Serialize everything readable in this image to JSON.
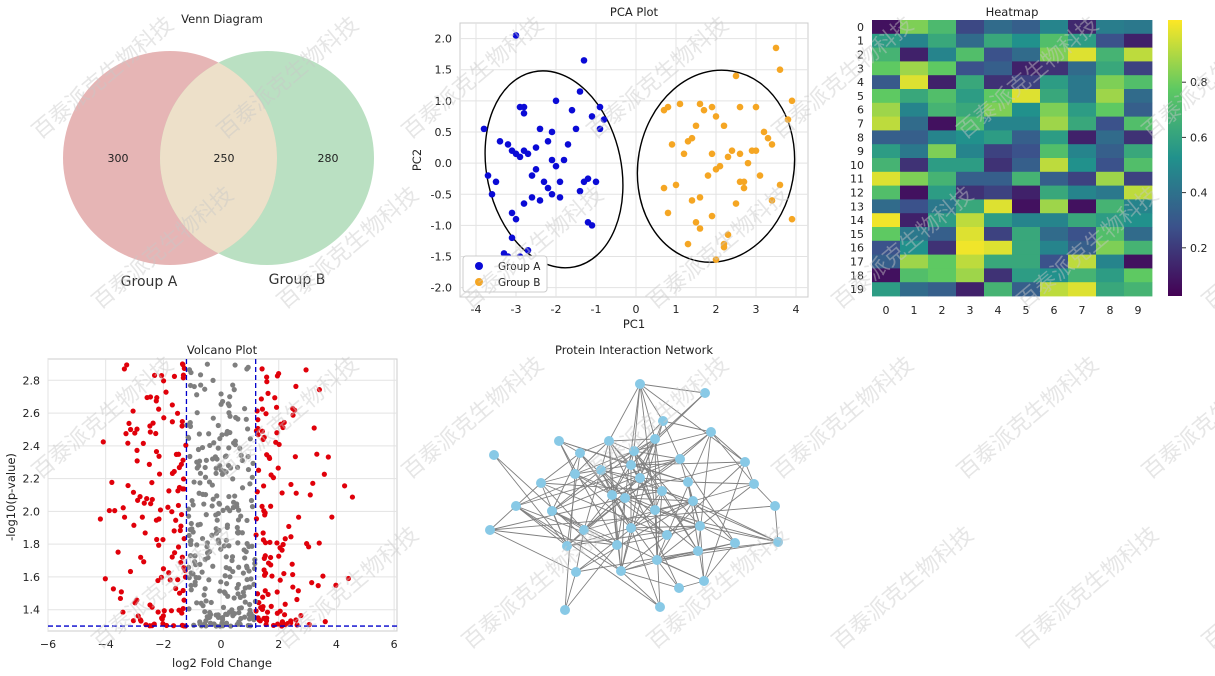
{
  "chart_data": [
    {
      "type": "venn",
      "title": "Venn Diagram",
      "sets": [
        {
          "name": "Group A",
          "only": "300",
          "color": "#e0a3a3"
        },
        {
          "name": "Group B",
          "only": "280",
          "color": "#a9d8b3"
        }
      ],
      "intersection": "250",
      "overlap_color": "#ede0c9"
    },
    {
      "type": "scatter",
      "title": "PCA Plot",
      "xlabel": "PC1",
      "ylabel": "PC2",
      "xlim": [
        -4.4,
        4.3
      ],
      "ylim": [
        -2.15,
        2.25
      ],
      "xticks": [
        "-4",
        "-3",
        "-2",
        "-1",
        "0",
        "1",
        "2",
        "3",
        "4"
      ],
      "yticks": [
        "-2.0",
        "-1.5",
        "-1.0",
        "-0.5",
        "0.0",
        "0.5",
        "1.0",
        "1.5",
        "2.0"
      ],
      "legend_position": "lower-left",
      "grid": true,
      "series": [
        {
          "name": "Group A",
          "color": "#0a0ad6",
          "ellipse": {
            "cx": -2.05,
            "cy": -0.1,
            "rx": 1.68,
            "ry": 1.6,
            "angle_deg": -12
          },
          "x": [
            -3.0,
            -1.3,
            -3.8,
            -3.7,
            -2.9,
            -2.8,
            -2.8,
            -2.4,
            -2.1,
            -2.0,
            -1.6,
            -1.4,
            -1.1,
            -0.9,
            -0.9,
            -0.8,
            -3.4,
            -3.2,
            -3.1,
            -3.0,
            -2.9,
            -2.8,
            -2.7,
            -2.5,
            -2.2,
            -2.1,
            -2.0,
            -1.8,
            -1.7,
            -1.5,
            -1.3,
            -1.2,
            -1.0,
            -3.5,
            -3.6,
            -3.1,
            -2.8,
            -2.6,
            -2.4,
            -2.3,
            -2.2,
            -2.1,
            -1.9,
            -1.4,
            -1.2,
            -1.1,
            -3.3,
            -2.9,
            -2.7,
            -3.1,
            -3.2,
            -3.0,
            -2.6,
            -2.5,
            -1.9
          ],
          "y": [
            2.05,
            1.65,
            0.55,
            -0.2,
            0.9,
            0.9,
            0.8,
            0.55,
            0.5,
            1.0,
            0.85,
            1.15,
            0.75,
            0.55,
            0.9,
            0.7,
            0.35,
            0.3,
            0.2,
            0.15,
            0.1,
            0.2,
            0.15,
            0.25,
            0.35,
            0.05,
            -0.05,
            0.05,
            0.3,
            0.55,
            -0.3,
            -0.25,
            -0.3,
            -0.3,
            -0.5,
            -0.8,
            -0.65,
            -0.55,
            -0.6,
            -0.3,
            -0.4,
            -0.5,
            -0.55,
            -0.45,
            -0.95,
            -1.0,
            -1.45,
            -1.5,
            -1.4,
            -1.2,
            -1.5,
            -0.9,
            -0.2,
            -0.1,
            -0.3
          ]
        },
        {
          "name": "Group B",
          "color": "#f5a623",
          "ellipse": {
            "cx": 2.0,
            "cy": -0.05,
            "rx": 1.95,
            "ry": 1.55,
            "angle_deg": 10
          },
          "x": [
            3.5,
            3.6,
            3.9,
            2.5,
            2.6,
            3.0,
            3.2,
            3.3,
            3.4,
            3.0,
            2.9,
            2.8,
            3.1,
            2.6,
            2.7,
            1.6,
            1.7,
            1.9,
            2.0,
            2.2,
            1.5,
            1.4,
            1.3,
            1.2,
            0.9,
            0.8,
            0.7,
            1.1,
            1.9,
            2.3,
            2.4,
            2.6,
            2.1,
            2.0,
            1.8,
            3.8,
            3.9,
            2.7,
            1.6,
            0.7,
            0.8,
            1.0,
            1.4,
            1.5,
            1.9,
            2.5,
            2.3,
            2.2,
            3.6,
            3.4,
            1.3,
            1.6,
            2.0,
            2.2
          ],
          "y": [
            1.85,
            1.5,
            1.0,
            1.4,
            0.9,
            0.9,
            0.5,
            0.4,
            0.3,
            0.2,
            0.2,
            0.0,
            -0.2,
            -0.3,
            -0.4,
            0.95,
            0.85,
            0.9,
            0.75,
            0.6,
            0.6,
            0.4,
            0.35,
            0.15,
            0.3,
            0.9,
            0.85,
            0.95,
            0.15,
            0.1,
            0.2,
            0.15,
            -0.05,
            -0.1,
            -0.2,
            0.7,
            -0.9,
            -0.3,
            -0.55,
            -0.4,
            -0.8,
            -0.35,
            -0.6,
            -0.95,
            -0.85,
            -0.65,
            -1.15,
            -1.3,
            -0.35,
            -0.6,
            -1.3,
            -1.05,
            -1.55,
            -1.35
          ]
        }
      ]
    },
    {
      "type": "heatmap",
      "title": "Heatmap",
      "colorscale": "viridis",
      "xticks": [
        "0",
        "1",
        "2",
        "3",
        "4",
        "5",
        "6",
        "7",
        "8",
        "9"
      ],
      "yticks": [
        "0",
        "1",
        "2",
        "3",
        "4",
        "5",
        "6",
        "7",
        "8",
        "9",
        "10",
        "11",
        "12",
        "13",
        "14",
        "15",
        "16",
        "17",
        "18",
        "19"
      ],
      "colorbar_ticks": [
        "0.2",
        "0.4",
        "0.6",
        "0.8"
      ],
      "colorbar_values": [
        0.2,
        0.4,
        0.6,
        0.8
      ],
      "values": [
        [
          0.05,
          0.8,
          0.68,
          0.22,
          0.35,
          0.3,
          0.45,
          0.12,
          0.42,
          0.4
        ],
        [
          0.55,
          0.45,
          0.6,
          0.35,
          0.6,
          0.5,
          0.7,
          0.55,
          0.25,
          0.1
        ],
        [
          0.65,
          0.1,
          0.45,
          0.7,
          0.25,
          0.35,
          0.8,
          0.95,
          0.65,
          0.9
        ],
        [
          0.75,
          0.85,
          0.75,
          0.25,
          0.3,
          0.1,
          0.15,
          0.35,
          0.6,
          0.2
        ],
        [
          0.28,
          0.95,
          0.1,
          0.6,
          0.15,
          0.2,
          0.55,
          0.4,
          0.8,
          0.7
        ],
        [
          0.75,
          0.6,
          0.7,
          0.55,
          0.75,
          0.95,
          0.6,
          0.4,
          0.85,
          0.35
        ],
        [
          0.85,
          0.45,
          0.65,
          0.6,
          0.8,
          0.5,
          0.8,
          0.55,
          0.75,
          0.3
        ],
        [
          0.9,
          0.35,
          0.05,
          0.7,
          0.45,
          0.45,
          0.85,
          0.6,
          0.25,
          0.7
        ],
        [
          0.3,
          0.3,
          0.45,
          0.5,
          0.55,
          0.3,
          0.55,
          0.1,
          0.35,
          0.15
        ],
        [
          0.55,
          0.4,
          0.8,
          0.45,
          0.2,
          0.25,
          0.7,
          0.45,
          0.3,
          0.6
        ],
        [
          0.65,
          0.15,
          0.55,
          0.55,
          0.15,
          0.3,
          0.9,
          0.5,
          0.25,
          0.7
        ],
        [
          0.95,
          0.8,
          0.65,
          0.3,
          0.3,
          0.65,
          0.3,
          0.2,
          0.85,
          0.2
        ],
        [
          0.7,
          0.05,
          0.55,
          0.15,
          0.2,
          0.1,
          0.6,
          0.45,
          0.4,
          0.9
        ],
        [
          0.35,
          0.25,
          0.4,
          0.6,
          0.95,
          0.05,
          0.85,
          0.05,
          0.65,
          0.45
        ],
        [
          0.98,
          0.1,
          0.55,
          0.9,
          0.55,
          0.45,
          0.45,
          0.6,
          0.55,
          0.5
        ],
        [
          0.75,
          0.4,
          0.3,
          0.95,
          0.2,
          0.6,
          0.35,
          0.25,
          0.7,
          0.35
        ],
        [
          0.25,
          0.5,
          0.15,
          0.98,
          0.95,
          0.6,
          0.45,
          0.3,
          0.8,
          0.65
        ],
        [
          0.3,
          0.85,
          0.75,
          0.9,
          0.6,
          0.6,
          0.25,
          0.9,
          0.45,
          0.05
        ],
        [
          0.05,
          0.7,
          0.75,
          0.85,
          0.15,
          0.55,
          0.5,
          0.65,
          0.55,
          0.75
        ],
        [
          0.55,
          0.35,
          0.3,
          0.1,
          0.65,
          0.3,
          0.9,
          0.95,
          0.6,
          0.65
        ]
      ]
    },
    {
      "type": "scatter",
      "title": "Volcano Plot",
      "xlabel": "log2 Fold Change",
      "ylabel": "-log10(p-value)",
      "xlim": [
        -6.0,
        6.1
      ],
      "ylim": [
        1.27,
        2.93
      ],
      "xticks": [
        "−6",
        "−4",
        "−2",
        "0",
        "2",
        "4",
        "6"
      ],
      "yticks": [
        "1.4",
        "1.6",
        "1.8",
        "2.0",
        "2.2",
        "2.4",
        "2.6",
        "2.8"
      ],
      "fc_threshold": 1.2,
      "p_threshold": 1.3,
      "threshold_line_color": "#0000cc",
      "significant_color": "#e0000a",
      "nonsignificant_color": "#7f7f7f",
      "grid": true
    },
    {
      "type": "network",
      "title": "Protein Interaction Network",
      "node_color": "#88c9e6",
      "edge_color": "#7f7f7f",
      "node_count": 40
    }
  ],
  "venn_labels": {
    "a_only": "300",
    "both": "250",
    "b_only": "280",
    "a_name": "Group A",
    "b_name": "Group B"
  },
  "watermark": "百泰派克生物科技"
}
